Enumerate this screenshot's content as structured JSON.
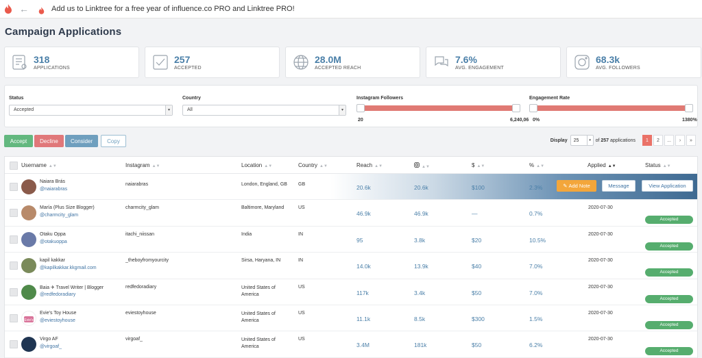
{
  "topbar": {
    "banner": "Add us to Linktree for a free year of influence.co PRO and Linktree PRO!",
    "back_icon": "arrow-left-icon",
    "logo_icon": "flame-icon",
    "accent": "#ea5a4c"
  },
  "page_title": "Campaign Applications",
  "stats": [
    {
      "value": "318",
      "label": "APPLICATIONS",
      "icon": "list-icon"
    },
    {
      "value": "257",
      "label": "ACCEPTED",
      "icon": "checkbox-icon"
    },
    {
      "value": "28.0M",
      "label": "ACCEPTED REACH",
      "icon": "globe-icon"
    },
    {
      "value": "7.6%",
      "label": "AVG. ENGAGEMENT",
      "icon": "chat-icon"
    },
    {
      "value": "68.3k",
      "label": "AVG. FOLLOWERS",
      "icon": "instagram-icon"
    }
  ],
  "filters": {
    "status": {
      "label": "Status",
      "value": "Accepted"
    },
    "country": {
      "label": "Country",
      "value": "All"
    },
    "followers": {
      "label": "Instagram Followers",
      "min": "20",
      "max": "6,240,06",
      "level_min": 0.0,
      "level_max": 1.0
    },
    "engagement": {
      "label": "Engagement Rate",
      "min": "0%",
      "max": "1380%",
      "level_min": 0.0,
      "level_max": 1.0
    }
  },
  "actions": {
    "accept": "Accept",
    "decline": "Decline",
    "consider": "Consider",
    "copy": "Copy"
  },
  "display": {
    "label": "Display",
    "per_page": "25",
    "of_prefix": "of",
    "total": "257",
    "of_suffix": "applications",
    "pages": [
      "1",
      "2",
      "...",
      "›",
      "»"
    ],
    "current_page": "1"
  },
  "columns": {
    "username": "Username",
    "instagram": "Instagram",
    "location": "Location",
    "country": "Country",
    "reach": "Reach",
    "ig_icon": "instagram-icon",
    "dollar": "$",
    "percent": "%",
    "applied": "Applied",
    "status": "Status"
  },
  "row_buttons": {
    "note": "Add Note",
    "message": "Message",
    "view": "View Application"
  },
  "rows": [
    {
      "name": "Naiara Brás",
      "handle": "@naiarabras",
      "instagram": "naiarabras",
      "location": "London, England, GB",
      "country": "GB",
      "reach": "20.6k",
      "ig": "20.6k",
      "price": "$100",
      "rate": "2.3%",
      "applied": "",
      "status": "",
      "avatar": "#8a5a4a"
    },
    {
      "name": "María (Plus Size Blogger)",
      "handle": "@charmcity_glam",
      "instagram": "charmcity_glam",
      "location": "Baltimore, Maryland",
      "country": "US",
      "reach": "46.9k",
      "ig": "46.9k",
      "price": "—",
      "rate": "0.7%",
      "applied": "2020-07-30",
      "status": "Accepted",
      "avatar": "#b88a6a"
    },
    {
      "name": "Otaku Oppa",
      "handle": "@otakuoppa",
      "instagram": "itachi_niissan",
      "location": "India",
      "country": "IN",
      "reach": "95",
      "ig": "3.8k",
      "price": "$20",
      "rate": "10.5%",
      "applied": "2020-07-30",
      "status": "Accepted",
      "avatar": "#6a7aa8"
    },
    {
      "name": "kapil kakkar",
      "handle": "@kapilkakkar.kkgmail.com",
      "instagram": "_theboyfromyourcity",
      "location": "Sirsa, Haryana, IN",
      "country": "IN",
      "reach": "14.0k",
      "ig": "13.9k",
      "price": "$40",
      "rate": "7.0%",
      "applied": "2020-07-30",
      "status": "Accepted",
      "avatar": "#7a8a5a"
    },
    {
      "name": "Baia ✈ Travel Writer | Blogger",
      "handle": "@redfedoradiary",
      "instagram": "redfedoradiary",
      "location": "United States of America",
      "country": "US",
      "reach": "117k",
      "ig": "3.4k",
      "price": "$50",
      "rate": "7.0%",
      "applied": "2020-07-30",
      "status": "Accepted",
      "avatar": "#4f8a4a"
    },
    {
      "name": "Evie's Toy House",
      "handle": "@eviestoyhouse",
      "instagram": "eviestoyhouse",
      "location": "United States of America",
      "country": "US",
      "reach": "11.1k",
      "ig": "8.5k",
      "price": "$300",
      "rate": "1.5%",
      "applied": "2020-07-30",
      "status": "Accepted",
      "avatar": "#d9749a"
    },
    {
      "name": "Virgo AF",
      "handle": "@virgoaf_",
      "instagram": "virgoaf_",
      "location": "United States of America",
      "country": "US",
      "reach": "3.4M",
      "ig": "181k",
      "price": "$50",
      "rate": "6.2%",
      "applied": "2020-07-30",
      "status": "Accepted",
      "avatar": "#1f3552"
    }
  ]
}
